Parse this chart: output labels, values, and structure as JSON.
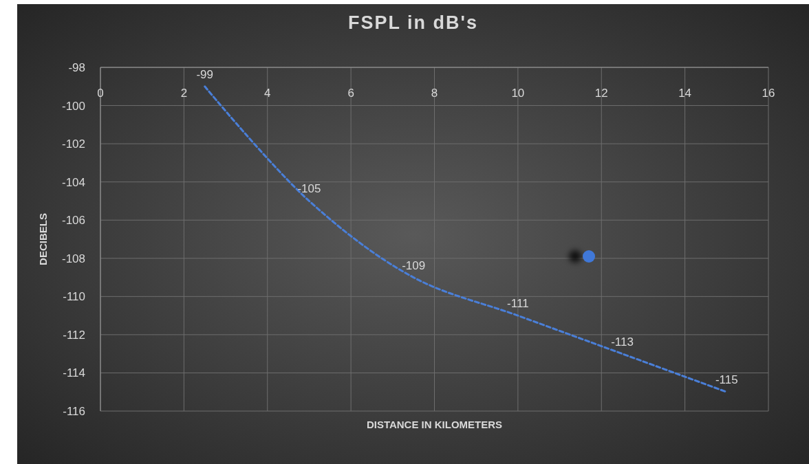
{
  "chart_data": {
    "type": "line",
    "title": "FSPL in dB's",
    "xlabel": "DISTANCE IN KILOMETERS",
    "ylabel": "DECIBELS",
    "xlim": [
      0,
      16
    ],
    "xticks": [
      0,
      2,
      4,
      6,
      8,
      10,
      12,
      14,
      16
    ],
    "ylim": [
      -116,
      -98
    ],
    "yticks": [
      -98,
      -100,
      -102,
      -104,
      -106,
      -108,
      -110,
      -112,
      -114,
      -116
    ],
    "grid": true,
    "line_style": "dashed",
    "marker": "none",
    "series": [
      {
        "color": "#4a7fd8",
        "x": [
          2.5,
          5,
          7.5,
          10,
          12.5,
          15
        ],
        "values": [
          -99,
          -105,
          -109,
          -111,
          -113,
          -115
        ],
        "value_labels": [
          "-99",
          "-105",
          "-109",
          "-111",
          "-113",
          "-115"
        ]
      },
      {
        "type": "scatter",
        "color": "#3f78d8",
        "marker": "circle",
        "x": [
          11.7
        ],
        "values": [
          -107.9
        ]
      }
    ]
  }
}
